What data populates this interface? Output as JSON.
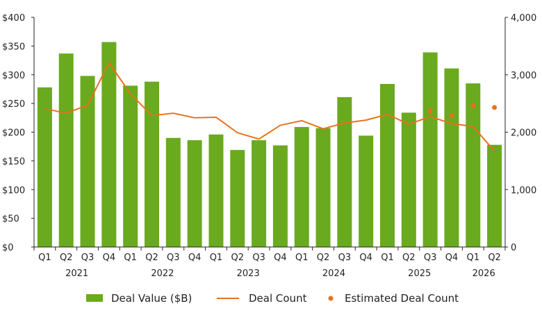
{
  "chart_data": {
    "type": "bar",
    "categories": [
      "Q1",
      "Q2",
      "Q3",
      "Q4",
      "Q1",
      "Q2",
      "Q3",
      "Q4",
      "Q1",
      "Q2",
      "Q3",
      "Q4",
      "Q1",
      "Q2",
      "Q3",
      "Q4",
      "Q1",
      "Q2",
      "Q3",
      "Q4",
      "Q1",
      "Q2"
    ],
    "years": [
      {
        "label": "2021",
        "start": 0,
        "end": 3
      },
      {
        "label": "2022",
        "start": 4,
        "end": 7
      },
      {
        "label": "2023",
        "start": 8,
        "end": 11
      },
      {
        "label": "2024",
        "start": 12,
        "end": 15
      },
      {
        "label": "2025",
        "start": 16,
        "end": 19
      },
      {
        "label": "2026",
        "start": 20,
        "end": 21
      }
    ],
    "series": [
      {
        "name": "Deal Value ($B)",
        "type": "bar",
        "axis": "left",
        "values": [
          278,
          337,
          298,
          357,
          281,
          288,
          190,
          186,
          196,
          169,
          186,
          177,
          209,
          207,
          261,
          194,
          284,
          234,
          339,
          311,
          285,
          178
        ]
      },
      {
        "name": "Deal Count",
        "type": "line",
        "axis": "right",
        "values": [
          2410,
          2330,
          2470,
          3210,
          2670,
          2290,
          2330,
          2250,
          2260,
          1990,
          1880,
          2120,
          2200,
          2060,
          2160,
          2210,
          2310,
          2140,
          2270,
          2150,
          2100,
          1670
        ]
      },
      {
        "name": "Estimated Deal Count",
        "type": "scatter",
        "axis": "right",
        "values": [
          null,
          null,
          null,
          null,
          null,
          null,
          null,
          null,
          null,
          null,
          null,
          null,
          null,
          null,
          null,
          null,
          null,
          null,
          2370,
          2280,
          2460,
          2430
        ]
      }
    ],
    "left_axis": {
      "ylim": [
        0,
        400
      ],
      "ticks": [
        0,
        50,
        100,
        150,
        200,
        250,
        300,
        350,
        400
      ],
      "tick_labels": [
        "$0",
        "$50",
        "$100",
        "$150",
        "$200",
        "$250",
        "$300",
        "$350",
        "$400"
      ]
    },
    "right_axis": {
      "ylim": [
        0,
        4000
      ],
      "ticks": [
        0,
        1000,
        2000,
        3000,
        4000
      ],
      "tick_labels": [
        "0",
        "1,000",
        "2,000",
        "3,000",
        "4,000"
      ]
    },
    "grid": false,
    "legend_position": "bottom",
    "colors": {
      "bar": "#6aaa1e",
      "line": "#e8711c",
      "dots": "#e8711c",
      "axis": "#222222",
      "text": "#222222"
    }
  },
  "legend": {
    "bar_label": "Deal Value ($B)",
    "line_label": "Deal Count",
    "dots_label": "Estimated Deal Count"
  }
}
